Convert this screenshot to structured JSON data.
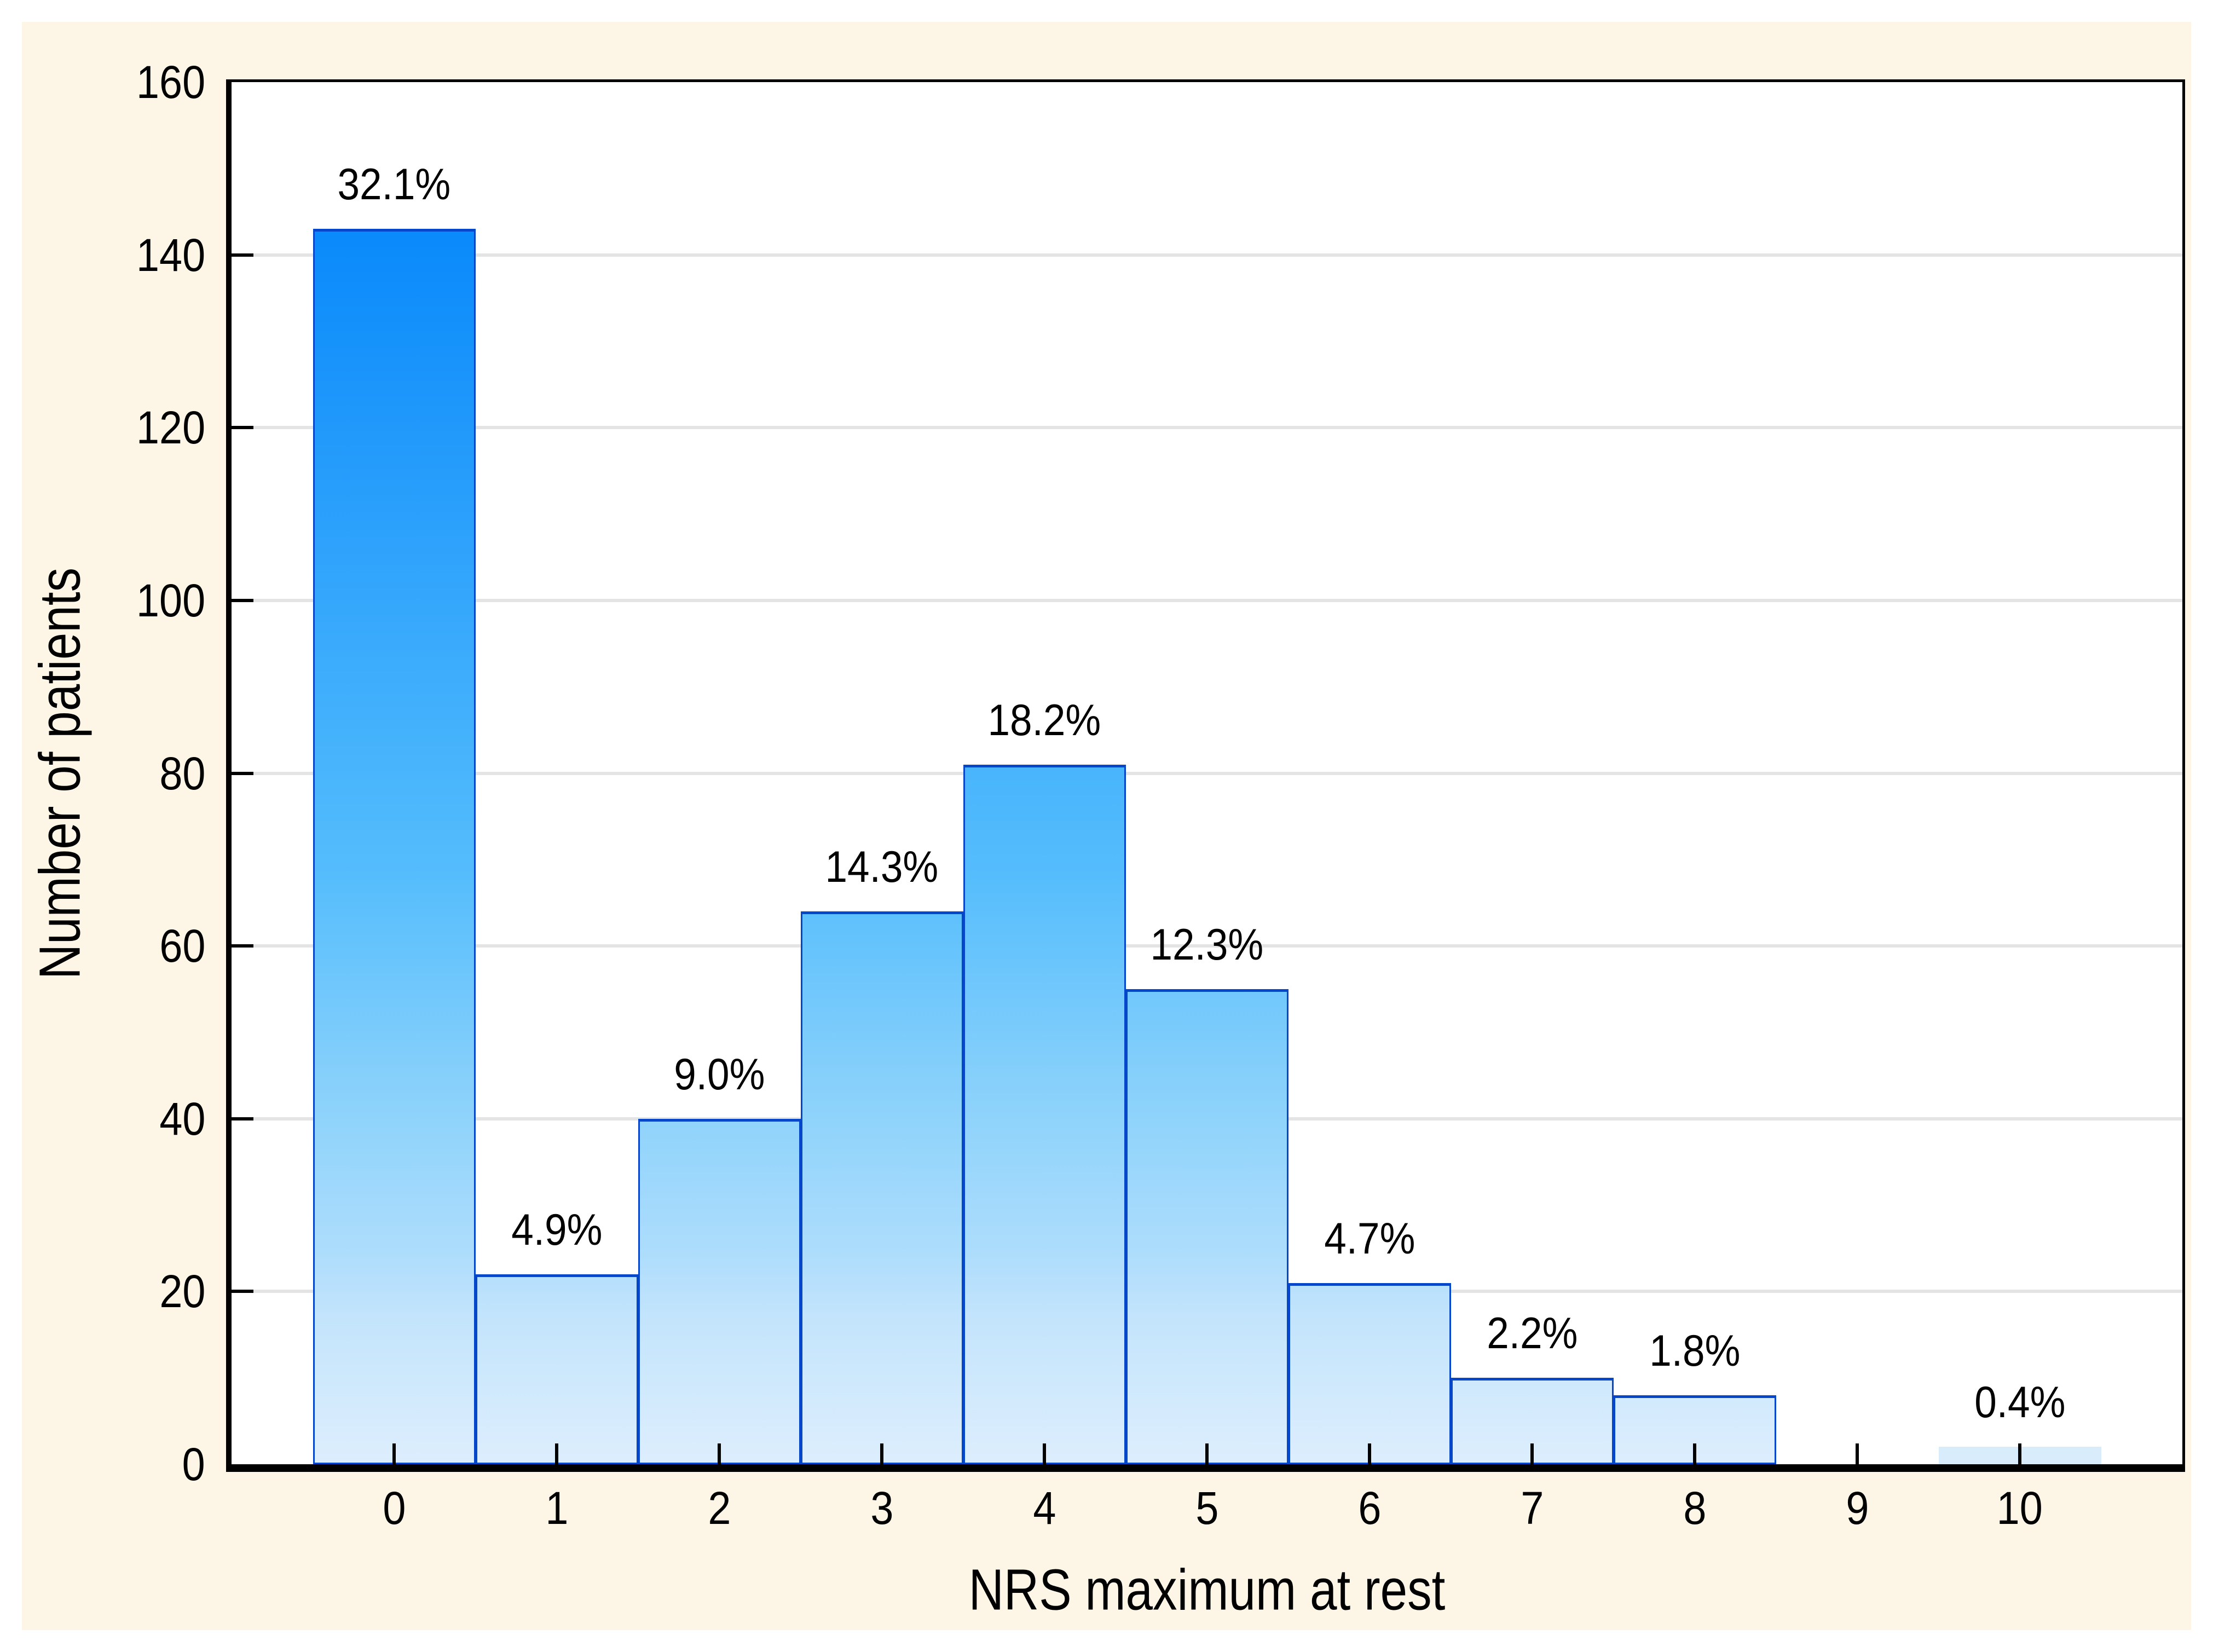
{
  "chart_data": {
    "type": "bar",
    "title": "",
    "xlabel": "NRS maximum at rest",
    "ylabel": "Number of patients",
    "categories": [
      "0",
      "1",
      "2",
      "3",
      "4",
      "5",
      "6",
      "7",
      "8",
      "9",
      "10"
    ],
    "values": [
      143,
      22,
      40,
      64,
      81,
      55,
      21,
      10,
      8,
      0,
      2
    ],
    "bar_labels": [
      "32.1%",
      "4.9%",
      "9.0%",
      "14.3%",
      "18.2%",
      "12.3%",
      "4.7%",
      "2.2%",
      "1.8%",
      null,
      "0.4%"
    ],
    "ylim": [
      0,
      160
    ],
    "ytick_step": 20,
    "ytick_labels": [
      "0",
      "20",
      "40",
      "60",
      "80",
      "100",
      "120",
      "140",
      "160"
    ],
    "grid": "horizontal-only",
    "legend": "none"
  },
  "colors": {
    "page_margin": "#ffffff",
    "figure_background": "#fdf6e6",
    "plot_background": "#ffffff",
    "axis": "#000000",
    "gridline": "#e4e4e4",
    "bar_border": "#0646c8",
    "bar_gradient_top": "#0680f9",
    "bar_gradient_stops": [
      "#0680f9 0%",
      "#0989fb 10.6%",
      "#55bdfc 57.5%",
      "#8fd3fb 75%",
      "#aeddfc 85%",
      "#c3e4fc 89.4%",
      "#ddeefd 100%"
    ],
    "small_bar_fill": "#d9ecfc",
    "text": "#000000"
  }
}
